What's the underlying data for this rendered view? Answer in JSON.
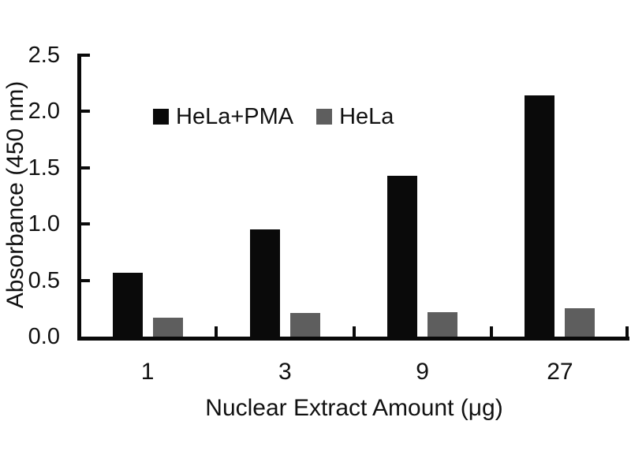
{
  "chart_data": {
    "type": "bar",
    "title": "",
    "xlabel": "Nuclear Extract Amount (μg)",
    "ylabel": "Absorbance (450 nm)",
    "categories": [
      "1",
      "3",
      "9",
      "27"
    ],
    "series": [
      {
        "name": "HeLa+PMA",
        "color": "#0a0a0a",
        "values": [
          0.57,
          0.95,
          1.43,
          2.14
        ]
      },
      {
        "name": "HeLa",
        "color": "#5e5e5e",
        "values": [
          0.17,
          0.21,
          0.22,
          0.25
        ]
      }
    ],
    "ylim": [
      0.0,
      2.5
    ],
    "ytick_step": 0.5,
    "ytick_labels": [
      "0.0",
      "0.5",
      "1.0",
      "1.5",
      "2.0",
      "2.5"
    ],
    "grid": false,
    "legend_position": "inside-top-left",
    "axis_color": "#0a0a0a",
    "background_color": "#ffffff"
  }
}
